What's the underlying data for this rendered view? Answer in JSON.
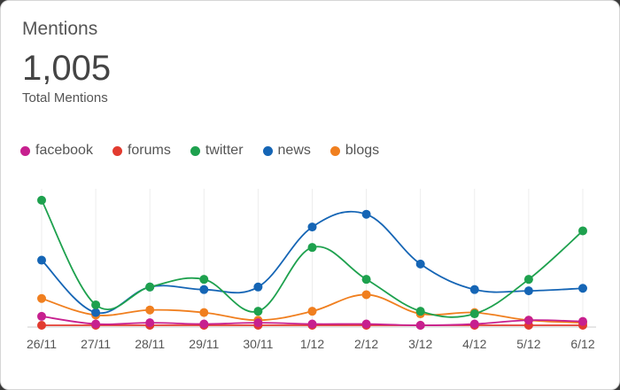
{
  "header": {
    "title": "Mentions",
    "total_value": "1,005",
    "total_caption": "Total Mentions"
  },
  "legend": [
    {
      "label": "facebook",
      "color": "#c7208f"
    },
    {
      "label": "forums",
      "color": "#e23b2f"
    },
    {
      "label": "twitter",
      "color": "#1ea14e"
    },
    {
      "label": "news",
      "color": "#1565b5"
    },
    {
      "label": "blogs",
      "color": "#f07f1f"
    }
  ],
  "chart_data": {
    "type": "line",
    "x": [
      "26/11",
      "27/11",
      "28/11",
      "29/11",
      "30/11",
      "1/12",
      "2/12",
      "3/12",
      "4/12",
      "5/12",
      "6/12"
    ],
    "ylim": [
      0,
      100
    ],
    "grid": true,
    "legend_position": "top-left",
    "series": [
      {
        "name": "facebook",
        "color": "#c7208f",
        "values": [
          7,
          1,
          2,
          1,
          2,
          1,
          1,
          0,
          1,
          4,
          3
        ]
      },
      {
        "name": "forums",
        "color": "#e23b2f",
        "values": [
          0,
          0,
          0,
          0,
          0,
          0,
          0,
          0,
          0,
          0,
          0
        ]
      },
      {
        "name": "twitter",
        "color": "#1ea14e",
        "values": [
          98,
          16,
          30,
          36,
          11,
          61,
          36,
          11,
          9,
          36,
          74
        ]
      },
      {
        "name": "news",
        "color": "#1565b5",
        "values": [
          51,
          10,
          30,
          28,
          30,
          77,
          87,
          48,
          28,
          27,
          29
        ]
      },
      {
        "name": "blogs",
        "color": "#f07f1f",
        "values": [
          21,
          8,
          12,
          10,
          4,
          11,
          24,
          9,
          10,
          4,
          2
        ]
      }
    ]
  }
}
